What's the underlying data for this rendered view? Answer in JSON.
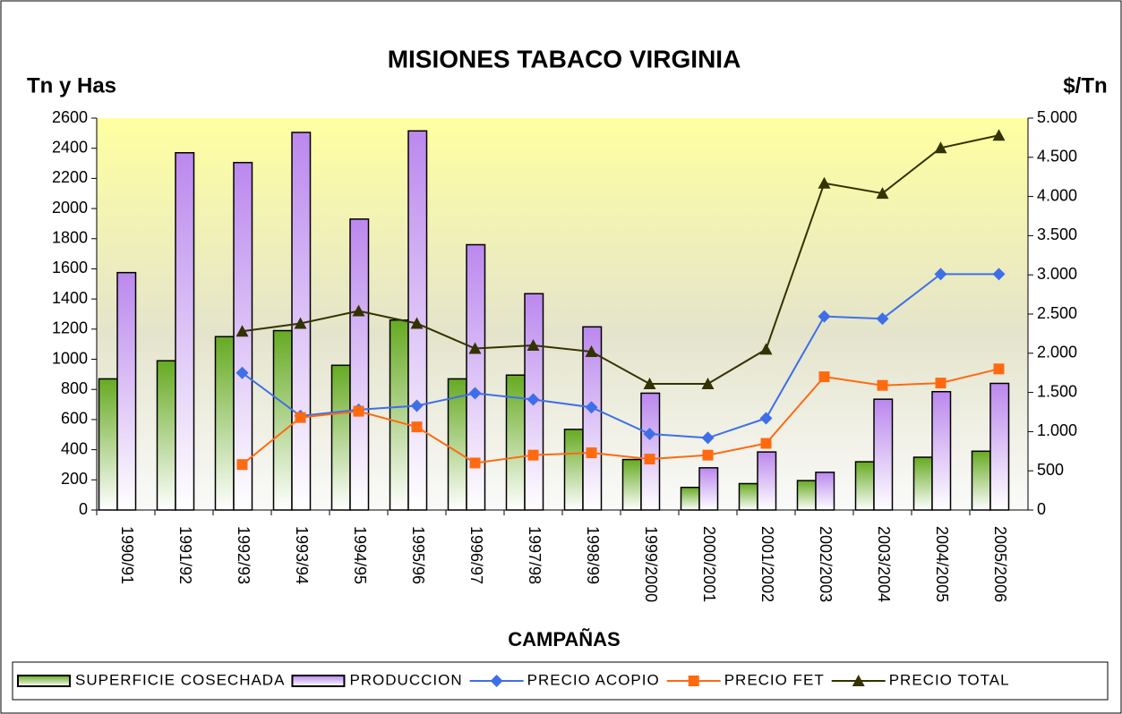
{
  "chart_data": {
    "type": "combo",
    "title": "MISIONES TABACO VIRGINIA",
    "ylabel": "Tn y Has",
    "y2label": "$/Tn",
    "xlabel": "CAMPAÑAS",
    "categories": [
      "1990/91",
      "1991/92",
      "1992/93",
      "1993/94",
      "1994/95",
      "1995/96",
      "1996/97",
      "1997/98",
      "1998/99",
      "1999/2000",
      "2000/2001",
      "2001/2002",
      "2002/2003",
      "2003/2004",
      "2004/2005",
      "2005/2006"
    ],
    "ylim": [
      0,
      2600
    ],
    "yticks": [
      0,
      200,
      400,
      600,
      800,
      1000,
      1200,
      1400,
      1600,
      1800,
      2000,
      2200,
      2400,
      2600
    ],
    "y2lim": [
      0,
      5000
    ],
    "y2ticks": [
      0,
      500,
      {
        "value": 1000,
        "label": "1.000"
      },
      {
        "value": 1500,
        "label": "1.500"
      },
      {
        "value": 2000,
        "label": "2.000"
      },
      {
        "value": 2500,
        "label": "2.500"
      },
      {
        "value": 3000,
        "label": "3.000"
      },
      {
        "value": 3500,
        "label": "3.500"
      },
      {
        "value": 4000,
        "label": "4.000"
      },
      {
        "value": 4500,
        "label": "4.500"
      },
      {
        "value": 5000,
        "label": "5.000"
      }
    ],
    "legend": "bottom",
    "series": [
      {
        "name": "SUPERFICIE COSECHADA",
        "type": "bar",
        "color": "#66aa22",
        "values": [
          870,
          990,
          1150,
          1190,
          960,
          1260,
          870,
          895,
          535,
          335,
          150,
          175,
          195,
          320,
          350,
          390
        ]
      },
      {
        "name": "PRODUCCION",
        "type": "bar",
        "color": "#bb88ee",
        "values": [
          1575,
          2370,
          2305,
          2505,
          1930,
          2515,
          1760,
          1435,
          1215,
          775,
          280,
          385,
          250,
          735,
          785,
          840
        ]
      },
      {
        "name": "PRECIO ACOPIO",
        "type": "line",
        "axis": "y2",
        "color": "#3f6fe8",
        "marker": "diamond",
        "values": [
          null,
          null,
          1750,
          1200,
          1280,
          1330,
          1490,
          1410,
          1310,
          970,
          920,
          1170,
          2470,
          2440,
          3010,
          3010
        ]
      },
      {
        "name": "PRECIO FET",
        "type": "line",
        "axis": "y2",
        "color": "#ff6a10",
        "marker": "square",
        "values": [
          null,
          null,
          580,
          1180,
          1260,
          1060,
          600,
          700,
          730,
          650,
          700,
          850,
          1700,
          1590,
          1620,
          1800
        ]
      },
      {
        "name": "PRECIO TOTAL",
        "type": "line",
        "axis": "y2",
        "color": "#333300",
        "marker": "triangle",
        "values": [
          null,
          null,
          2280,
          2380,
          2540,
          2380,
          2060,
          2100,
          2020,
          1610,
          1610,
          2050,
          4170,
          4040,
          4620,
          4780
        ]
      }
    ]
  }
}
